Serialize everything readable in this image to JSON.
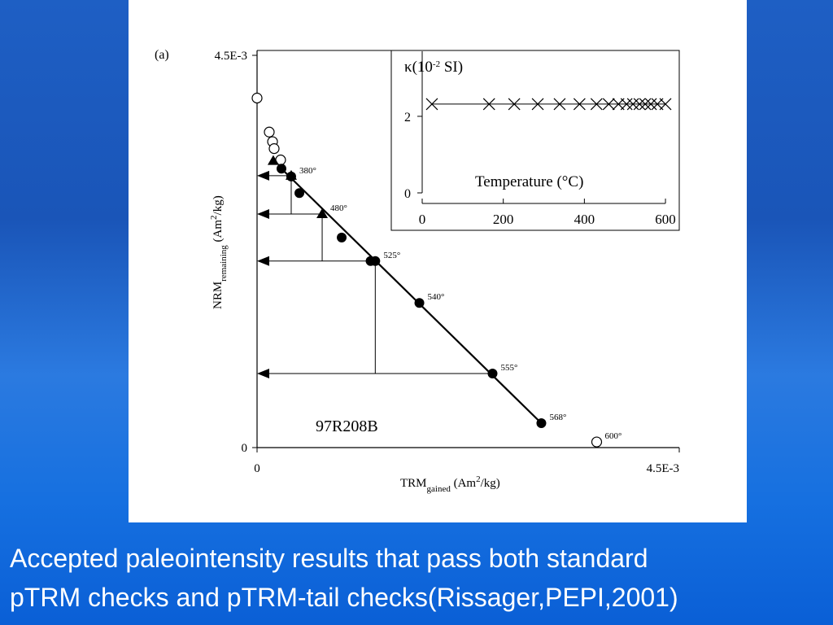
{
  "caption": [
    "Accepted paleointensity results that pass both standard",
    "pTRM checks and pTRM-tail checks(Rissager,PEPI,2001)"
  ],
  "chart_data": [
    {
      "type": "scatter",
      "panel_label": "(a)",
      "annotation": "97R208B",
      "x_label": [
        "TRM",
        "gained",
        " (Am",
        "2",
        "/kg)"
      ],
      "y_label": [
        "NRM",
        "remaining",
        " (Am",
        "2",
        "/kg)"
      ],
      "xlim": [
        0,
        0.0045
      ],
      "ylim": [
        0,
        0.0045
      ],
      "xticks": [
        0,
        {
          "value": 0.0045,
          "label": "4.5E-3"
        }
      ],
      "yticks": [
        0,
        {
          "value": 0.0045,
          "label": "4.5E-3"
        }
      ],
      "series": [
        {
          "style": "fit-line",
          "color": "#000000",
          "x": [
            0.00026,
            0.00303
          ],
          "values": [
            0.0032,
            0.00028
          ]
        },
        {
          "style": "arrow",
          "color": "#000000",
          "x": [
            0.000364,
            0.000694,
            0.00126,
            0.00251
          ],
          "values": [
            0.00312,
            0.00268,
            0.00214,
            0.00085
          ]
        },
        {
          "style": "open-circle",
          "color": "#000000",
          "x": [
            0,
            0.00013,
            0.000165,
            0.000182,
            0.000251,
            0.00362
          ],
          "values": [
            0.00401,
            0.00362,
            0.00351,
            0.00343,
            0.0033,
            6.5e-05
          ],
          "labels": [
            null,
            null,
            null,
            null,
            null,
            "600°"
          ]
        },
        {
          "style": "triangle",
          "color": "#000000",
          "x": [
            0.000173,
            0.000364,
            0.000694
          ],
          "values": [
            0.00329,
            0.00312,
            0.00268
          ],
          "labels": [
            null,
            null,
            "480°"
          ]
        },
        {
          "style": "filled-circle",
          "color": "#000000",
          "x": [
            0.00026,
            0.000364,
            0.000451,
            0.000902,
            0.00121,
            0.00126,
            0.00173,
            0.00251,
            0.00303
          ],
          "values": [
            0.0032,
            0.00311,
            0.00292,
            0.00241,
            0.00214,
            0.00214,
            0.00166,
            0.00085,
            0.00028
          ],
          "labels": [
            null,
            "380°",
            null,
            null,
            null,
            "525°",
            "540°",
            "555°",
            "568°"
          ]
        }
      ]
    },
    {
      "type": "line",
      "title": [
        "κ(10",
        "-2",
        " SI)"
      ],
      "x_label": "Temperature (°C)",
      "xlim": [
        0,
        634
      ],
      "ylim": [
        0,
        3.7
      ],
      "xticks": [
        0,
        200,
        400,
        600
      ],
      "yticks": [
        0,
        2
      ],
      "series": [
        {
          "style": "cross",
          "color": "#000000",
          "x": [
            24,
            165,
            227,
            285,
            339,
            388,
            430,
            460,
            484,
            504,
            520,
            536,
            550,
            564,
            580,
            600
          ],
          "values": [
            2.32,
            2.32,
            2.32,
            2.32,
            2.32,
            2.32,
            2.32,
            2.32,
            2.32,
            2.32,
            2.32,
            2.32,
            2.32,
            2.32,
            2.32,
            2.32
          ]
        }
      ]
    }
  ]
}
